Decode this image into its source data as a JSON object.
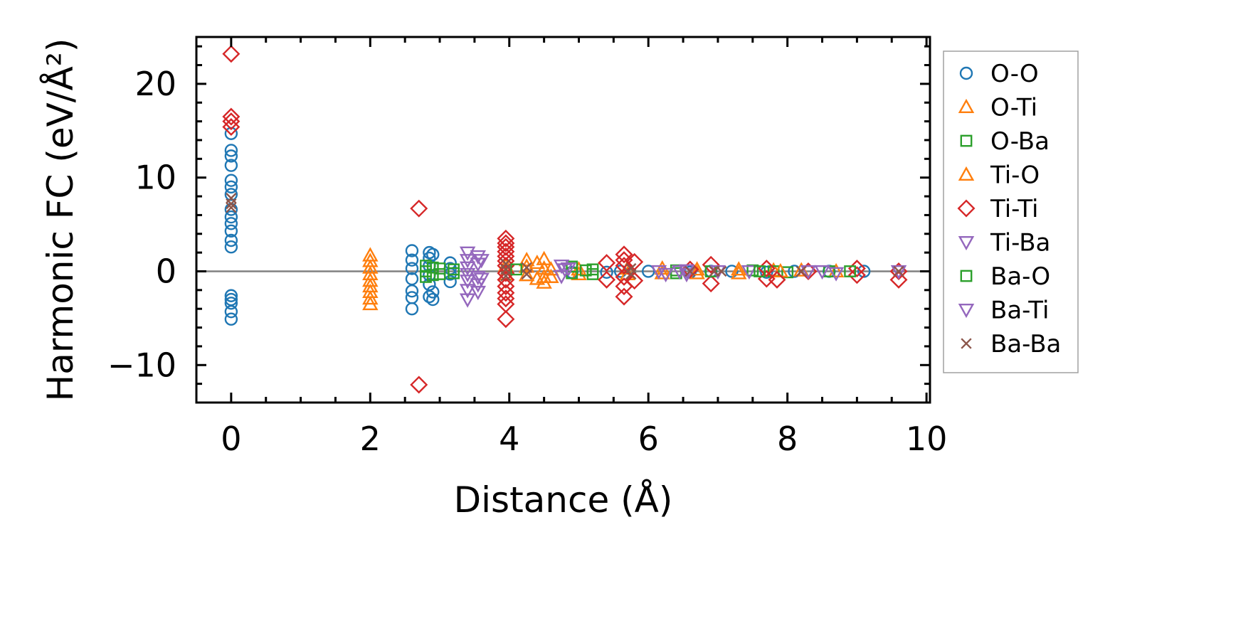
{
  "chart_data": {
    "type": "scatter",
    "title": "",
    "xlabel": "Distance (Å)",
    "ylabel": "Harmonic FC (eV/Å²)",
    "xlim": [
      -0.5,
      10.05
    ],
    "ylim": [
      -14,
      25
    ],
    "x_ticks": [
      0,
      2,
      4,
      6,
      8,
      10
    ],
    "x_tick_labels": [
      "0",
      "2",
      "4",
      "6",
      "8",
      "10"
    ],
    "y_ticks": [
      -10,
      0,
      10,
      20
    ],
    "y_tick_labels": [
      "−10",
      "0",
      "10",
      "20"
    ],
    "zero_line": 0,
    "legend_position": "outside-right",
    "series": [
      {
        "name": "O-O",
        "marker": "circle",
        "color": "#1f77b4",
        "points": [
          [
            0,
            14.7
          ],
          [
            0,
            12.9
          ],
          [
            0,
            12.3
          ],
          [
            0,
            11.3
          ],
          [
            0,
            9.7
          ],
          [
            0,
            9.0
          ],
          [
            0,
            8.2
          ],
          [
            0,
            6.6
          ],
          [
            0,
            5.8
          ],
          [
            0,
            5.1
          ],
          [
            0,
            4.3
          ],
          [
            0,
            3.3
          ],
          [
            0,
            2.6
          ],
          [
            0,
            -2.6
          ],
          [
            0,
            -3.0
          ],
          [
            0,
            -3.4
          ],
          [
            0,
            -4.3
          ],
          [
            0,
            -5.1
          ],
          [
            2.6,
            2.2
          ],
          [
            2.6,
            1.2
          ],
          [
            2.6,
            0.3
          ],
          [
            2.6,
            -0.8
          ],
          [
            2.6,
            -2.1
          ],
          [
            2.6,
            -2.8
          ],
          [
            2.6,
            -4.0
          ],
          [
            2.85,
            2.0
          ],
          [
            2.85,
            1.4
          ],
          [
            2.85,
            0.6
          ],
          [
            2.85,
            -0.4
          ],
          [
            2.85,
            -1.4
          ],
          [
            2.85,
            -2.7
          ],
          [
            2.9,
            1.8
          ],
          [
            2.9,
            -2.2
          ],
          [
            2.9,
            -3.0
          ],
          [
            3.15,
            0.9
          ],
          [
            3.15,
            0.3
          ],
          [
            3.15,
            -0.3
          ],
          [
            3.15,
            -1.1
          ],
          [
            4.9,
            -0.1
          ],
          [
            5.4,
            -0.1
          ],
          [
            5.6,
            0.0
          ],
          [
            6.0,
            0.0
          ],
          [
            6.6,
            -0.1
          ],
          [
            6.9,
            0.0
          ],
          [
            7.2,
            0.0
          ],
          [
            7.7,
            -0.1
          ],
          [
            8.1,
            0.0
          ],
          [
            8.6,
            0.0
          ],
          [
            9.1,
            0.0
          ]
        ]
      },
      {
        "name": "O-Ti",
        "marker": "triangle-up",
        "color": "#ff7f0e",
        "points": [
          [
            2.0,
            1.7
          ],
          [
            2.0,
            1.1
          ],
          [
            2.0,
            0.4
          ],
          [
            2.0,
            -0.3
          ],
          [
            2.0,
            -1.0
          ],
          [
            2.0,
            -1.6
          ],
          [
            2.0,
            -2.2
          ],
          [
            2.0,
            -2.9
          ],
          [
            2.0,
            -3.5
          ],
          [
            4.25,
            1.2
          ],
          [
            4.25,
            0.5
          ],
          [
            4.25,
            -0.4
          ],
          [
            4.5,
            1.3
          ],
          [
            4.5,
            0.3
          ],
          [
            4.5,
            -0.6
          ],
          [
            4.5,
            -1.2
          ],
          [
            5.0,
            0.2
          ],
          [
            5.0,
            -0.3
          ],
          [
            6.2,
            0.3
          ],
          [
            6.2,
            -0.2
          ],
          [
            7.3,
            0.2
          ],
          [
            7.3,
            -0.2
          ],
          [
            7.8,
            0.1
          ],
          [
            8.2,
            0.1
          ],
          [
            8.7,
            0.0
          ]
        ]
      },
      {
        "name": "O-Ba",
        "marker": "square",
        "color": "#2ca02c",
        "points": [
          [
            2.8,
            0.6
          ],
          [
            2.8,
            0.0
          ],
          [
            2.8,
            -0.6
          ],
          [
            2.9,
            0.4
          ],
          [
            2.9,
            -0.4
          ],
          [
            3.2,
            0.2
          ],
          [
            3.2,
            -0.2
          ],
          [
            4.9,
            0.5
          ],
          [
            4.9,
            -0.2
          ],
          [
            5.2,
            0.2
          ],
          [
            5.2,
            -0.3
          ],
          [
            6.4,
            0.1
          ],
          [
            6.4,
            -0.2
          ],
          [
            7.5,
            0.1
          ],
          [
            7.8,
            0.0
          ],
          [
            8.0,
            -0.1
          ],
          [
            8.6,
            0.0
          ]
        ]
      },
      {
        "name": "Ti-O",
        "marker": "triangle-up",
        "color": "#ff7f0e",
        "points": [
          [
            3.95,
            0.6
          ],
          [
            3.95,
            -0.3
          ],
          [
            4.4,
            0.9
          ],
          [
            4.4,
            -0.8
          ],
          [
            4.6,
            0.2
          ],
          [
            4.6,
            -0.6
          ],
          [
            5.7,
            0.3
          ],
          [
            5.7,
            -0.3
          ],
          [
            6.7,
            0.2
          ],
          [
            6.7,
            -0.2
          ],
          [
            7.9,
            0.0
          ]
        ]
      },
      {
        "name": "Ti-Ti",
        "marker": "diamond",
        "color": "#d62728",
        "points": [
          [
            0,
            23.2
          ],
          [
            0,
            16.5
          ],
          [
            0,
            16.0
          ],
          [
            0,
            15.4
          ],
          [
            2.7,
            6.7
          ],
          [
            2.7,
            -12.1
          ],
          [
            3.95,
            3.5
          ],
          [
            3.95,
            3.0
          ],
          [
            3.95,
            2.6
          ],
          [
            3.95,
            2.1
          ],
          [
            3.95,
            1.6
          ],
          [
            3.95,
            1.1
          ],
          [
            3.95,
            0.6
          ],
          [
            3.95,
            -0.2
          ],
          [
            3.95,
            -0.9
          ],
          [
            3.95,
            -1.6
          ],
          [
            3.95,
            -2.3
          ],
          [
            3.95,
            -2.9
          ],
          [
            3.95,
            -3.5
          ],
          [
            3.95,
            -5.1
          ],
          [
            5.4,
            0.9
          ],
          [
            5.4,
            -0.9
          ],
          [
            5.65,
            1.8
          ],
          [
            5.65,
            1.2
          ],
          [
            5.65,
            0.6
          ],
          [
            5.65,
            -0.6
          ],
          [
            5.65,
            -1.6
          ],
          [
            5.65,
            -2.7
          ],
          [
            5.8,
            1.0
          ],
          [
            5.8,
            -1.0
          ],
          [
            6.6,
            0.2
          ],
          [
            6.9,
            0.7
          ],
          [
            6.9,
            -1.3
          ],
          [
            7.7,
            0.3
          ],
          [
            7.7,
            -0.8
          ],
          [
            7.85,
            -0.9
          ],
          [
            8.3,
            0.0
          ],
          [
            9.0,
            0.3
          ],
          [
            9.0,
            -0.4
          ],
          [
            9.6,
            0.0
          ],
          [
            9.6,
            -0.9
          ]
        ]
      },
      {
        "name": "Ti-Ba",
        "marker": "triangle-down",
        "color": "#9467bd",
        "points": [
          [
            3.4,
            2.0
          ],
          [
            3.4,
            1.2
          ],
          [
            3.4,
            0.4
          ],
          [
            3.4,
            -0.3
          ],
          [
            3.4,
            -1.0
          ],
          [
            3.4,
            -2.0
          ],
          [
            3.4,
            -3.0
          ],
          [
            3.55,
            1.6
          ],
          [
            3.55,
            0.8
          ],
          [
            3.55,
            -0.6
          ],
          [
            3.55,
            -1.4
          ],
          [
            3.55,
            -2.2
          ],
          [
            4.75,
            0.6
          ],
          [
            4.75,
            -0.5
          ],
          [
            4.8,
            0.2
          ],
          [
            6.15,
            0.0
          ],
          [
            6.25,
            -0.3
          ],
          [
            6.55,
            0.1
          ],
          [
            6.55,
            -0.3
          ],
          [
            7.45,
            0.0
          ],
          [
            8.5,
            0.0
          ],
          [
            8.7,
            -0.2
          ],
          [
            9.6,
            0.0
          ]
        ]
      },
      {
        "name": "Ba-O",
        "marker": "square",
        "color": "#2ca02c",
        "points": [
          [
            3.0,
            0.3
          ],
          [
            3.0,
            -0.3
          ],
          [
            4.1,
            0.2
          ],
          [
            5.1,
            0.1
          ],
          [
            6.9,
            0.0
          ],
          [
            7.6,
            0.0
          ],
          [
            8.9,
            0.0
          ]
        ]
      },
      {
        "name": "Ba-Ti",
        "marker": "triangle-down",
        "color": "#9467bd",
        "points": [
          [
            3.6,
            1.2
          ],
          [
            3.6,
            -0.8
          ],
          [
            4.85,
            0.3
          ],
          [
            6.45,
            0.0
          ],
          [
            7.0,
            0.0
          ],
          [
            8.3,
            0.0
          ]
        ]
      },
      {
        "name": "Ba-Ba",
        "marker": "x",
        "color": "#8c564b",
        "points": [
          [
            0,
            7.8
          ],
          [
            0,
            7.2
          ],
          [
            0,
            6.8
          ],
          [
            3.95,
            0.8
          ],
          [
            3.95,
            0.2
          ],
          [
            3.95,
            -0.5
          ],
          [
            4.25,
            0.4
          ],
          [
            4.25,
            -0.3
          ],
          [
            5.75,
            0.3
          ],
          [
            5.75,
            -0.3
          ],
          [
            6.6,
            0.0
          ],
          [
            6.95,
            0.0
          ],
          [
            7.05,
            0.0
          ],
          [
            8.2,
            0.0
          ],
          [
            9.6,
            0.0
          ]
        ]
      }
    ]
  }
}
